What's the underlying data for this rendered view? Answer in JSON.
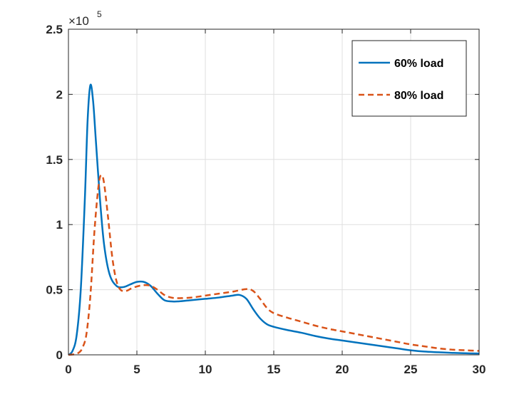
{
  "chart_data": {
    "type": "line",
    "xlim": [
      0,
      30
    ],
    "ylim": [
      0,
      250000
    ],
    "x_ticks": [
      0,
      5,
      10,
      15,
      20,
      25,
      30
    ],
    "x_tick_labels": [
      "0",
      "5",
      "10",
      "15",
      "20",
      "25",
      "30"
    ],
    "y_ticks": [
      0,
      50000,
      100000,
      150000,
      200000,
      250000
    ],
    "y_tick_labels": [
      "0",
      "0.5",
      "1",
      "1.5",
      "2",
      "2.5"
    ],
    "y_exponent_label": "×10",
    "y_exponent": "5",
    "grid": true,
    "legend_position": "top-right",
    "series": [
      {
        "name": "60% load",
        "color": "#0072BD",
        "style": "solid",
        "points": [
          [
            0,
            0
          ],
          [
            0.3,
            3000
          ],
          [
            0.6,
            15000
          ],
          [
            0.9,
            50000
          ],
          [
            1.2,
            120000
          ],
          [
            1.4,
            180000
          ],
          [
            1.6,
            207000
          ],
          [
            1.8,
            195000
          ],
          [
            2.0,
            165000
          ],
          [
            2.3,
            120000
          ],
          [
            2.6,
            85000
          ],
          [
            3.0,
            62000
          ],
          [
            3.5,
            53000
          ],
          [
            4.0,
            52000
          ],
          [
            4.5,
            54000
          ],
          [
            5.0,
            56000
          ],
          [
            5.5,
            56000
          ],
          [
            6.0,
            53000
          ],
          [
            6.5,
            47000
          ],
          [
            7.0,
            42000
          ],
          [
            7.5,
            41000
          ],
          [
            8.0,
            41000
          ],
          [
            9,
            42000
          ],
          [
            10,
            43000
          ],
          [
            11,
            44000
          ],
          [
            12,
            45500
          ],
          [
            12.5,
            46000
          ],
          [
            13,
            43000
          ],
          [
            13.5,
            35000
          ],
          [
            14,
            28000
          ],
          [
            14.5,
            23500
          ],
          [
            15,
            21500
          ],
          [
            16,
            19000
          ],
          [
            17,
            17000
          ],
          [
            18,
            14500
          ],
          [
            19,
            12500
          ],
          [
            20,
            11000
          ],
          [
            21,
            9500
          ],
          [
            22,
            8000
          ],
          [
            23,
            6500
          ],
          [
            24,
            5000
          ],
          [
            25,
            3500
          ],
          [
            26,
            2500
          ],
          [
            27,
            2000
          ],
          [
            28,
            1500
          ],
          [
            29,
            1200
          ],
          [
            30,
            1000
          ]
        ]
      },
      {
        "name": "80% load",
        "color": "#D95319",
        "style": "dashed",
        "points": [
          [
            0,
            0
          ],
          [
            0.5,
            500
          ],
          [
            0.8,
            2000
          ],
          [
            1.0,
            5000
          ],
          [
            1.3,
            15000
          ],
          [
            1.6,
            45000
          ],
          [
            1.9,
            95000
          ],
          [
            2.2,
            130000
          ],
          [
            2.4,
            138000
          ],
          [
            2.6,
            132000
          ],
          [
            2.9,
            105000
          ],
          [
            3.2,
            75000
          ],
          [
            3.5,
            57000
          ],
          [
            3.8,
            50000
          ],
          [
            4.2,
            49000
          ],
          [
            4.6,
            51000
          ],
          [
            5.0,
            52500
          ],
          [
            5.5,
            53500
          ],
          [
            6.0,
            53000
          ],
          [
            6.5,
            50000
          ],
          [
            7.0,
            46000
          ],
          [
            7.5,
            44000
          ],
          [
            8.0,
            43500
          ],
          [
            9,
            44000
          ],
          [
            10,
            45500
          ],
          [
            11,
            47000
          ],
          [
            12,
            48500
          ],
          [
            13,
            50500
          ],
          [
            13.5,
            49000
          ],
          [
            14,
            43000
          ],
          [
            14.5,
            36000
          ],
          [
            15,
            32000
          ],
          [
            16,
            28500
          ],
          [
            17,
            25500
          ],
          [
            18,
            22500
          ],
          [
            19,
            20000
          ],
          [
            20,
            18000
          ],
          [
            21,
            16000
          ],
          [
            22,
            14000
          ],
          [
            23,
            12000
          ],
          [
            24,
            10000
          ],
          [
            25,
            8000
          ],
          [
            26,
            6500
          ],
          [
            27,
            5000
          ],
          [
            28,
            4000
          ],
          [
            29,
            3500
          ],
          [
            30,
            3000
          ]
        ]
      }
    ]
  }
}
